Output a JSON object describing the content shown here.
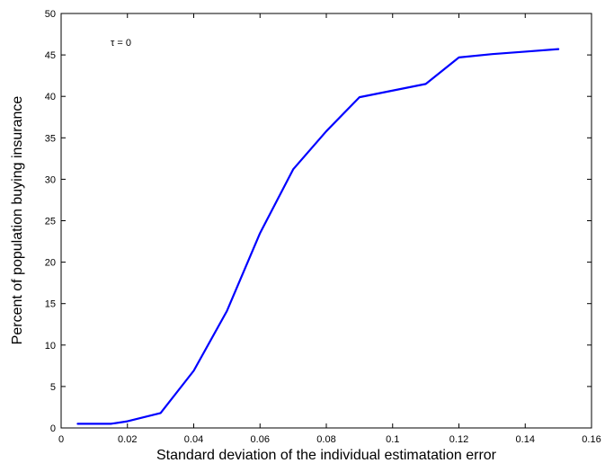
{
  "chart_data": {
    "type": "line",
    "title": "",
    "xlabel": "Standard deviation of the individual estimatation error",
    "ylabel": "Percent of population buying insurance",
    "xlim": [
      0,
      0.16
    ],
    "ylim": [
      0,
      50
    ],
    "xticks": [
      "0",
      "0.02",
      "0.04",
      "0.06",
      "0.08",
      "0.1",
      "0.12",
      "0.14",
      "0.16"
    ],
    "yticks": [
      "0",
      "5",
      "10",
      "15",
      "20",
      "25",
      "30",
      "35",
      "40",
      "45",
      "50"
    ],
    "grid": false,
    "annotation": "τ = 0",
    "series": [
      {
        "color": "#0000ff",
        "x": [
          0.005,
          0.015,
          0.02,
          0.03,
          0.04,
          0.05,
          0.06,
          0.07,
          0.08,
          0.09,
          0.1,
          0.11,
          0.12,
          0.13,
          0.14,
          0.15
        ],
        "y": [
          0.5,
          0.5,
          0.8,
          1.8,
          6.9,
          14.1,
          23.5,
          31.2,
          35.8,
          39.9,
          40.7,
          41.5,
          44.7,
          45.1,
          45.4,
          45.7
        ]
      }
    ]
  }
}
